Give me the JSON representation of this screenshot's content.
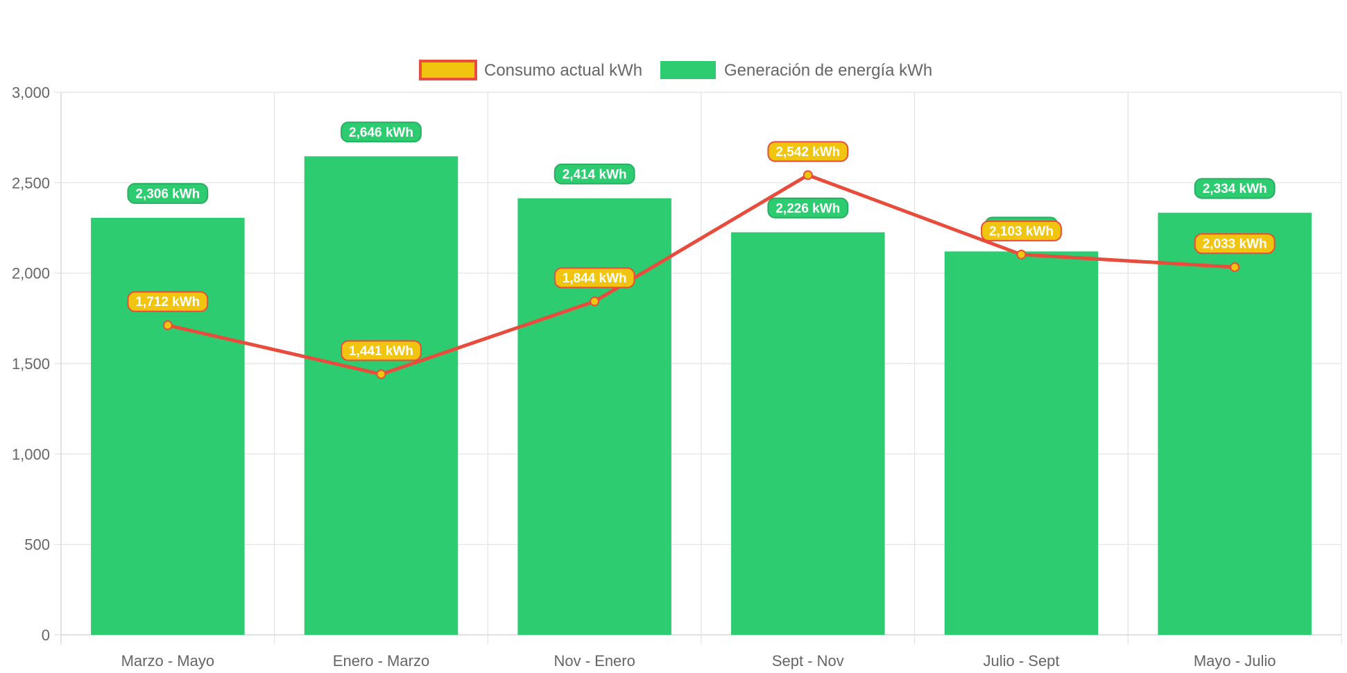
{
  "chart_data": {
    "type": "bar",
    "categories": [
      "Marzo - Mayo",
      "Enero - Marzo",
      "Nov - Enero",
      "Sept - Nov",
      "Julio - Sept",
      "Mayo - Julio"
    ],
    "series": [
      {
        "name": "Generación de energía kWh",
        "type": "bar",
        "values": [
          2306,
          2646,
          2414,
          2226,
          2120,
          2334
        ],
        "labels": [
          "2,306 kWh",
          "2,646 kWh",
          "2,414 kWh",
          "2,226 kWh",
          "",
          "2,334 kWh"
        ],
        "color": "#2ECC71",
        "label_border_color": "#27AE60"
      },
      {
        "name": "Consumo actual kWh",
        "type": "line",
        "values": [
          1712,
          1441,
          1844,
          2542,
          2103,
          2033
        ],
        "labels": [
          "1,712 kWh",
          "1,441 kWh",
          "1,844 kWh",
          "2,542 kWh",
          "2,103 kWh",
          "2,033 kWh"
        ],
        "color": "#E74C3C",
        "fill_color": "#F1C40F"
      }
    ],
    "y_ticks": [
      "0",
      "500",
      "1,000",
      "1,500",
      "2,000",
      "2,500",
      "3,000"
    ],
    "ylim": [
      0,
      3000
    ],
    "title": "",
    "xlabel": "",
    "ylabel": "",
    "grid": true,
    "legend_position": "top-center"
  }
}
